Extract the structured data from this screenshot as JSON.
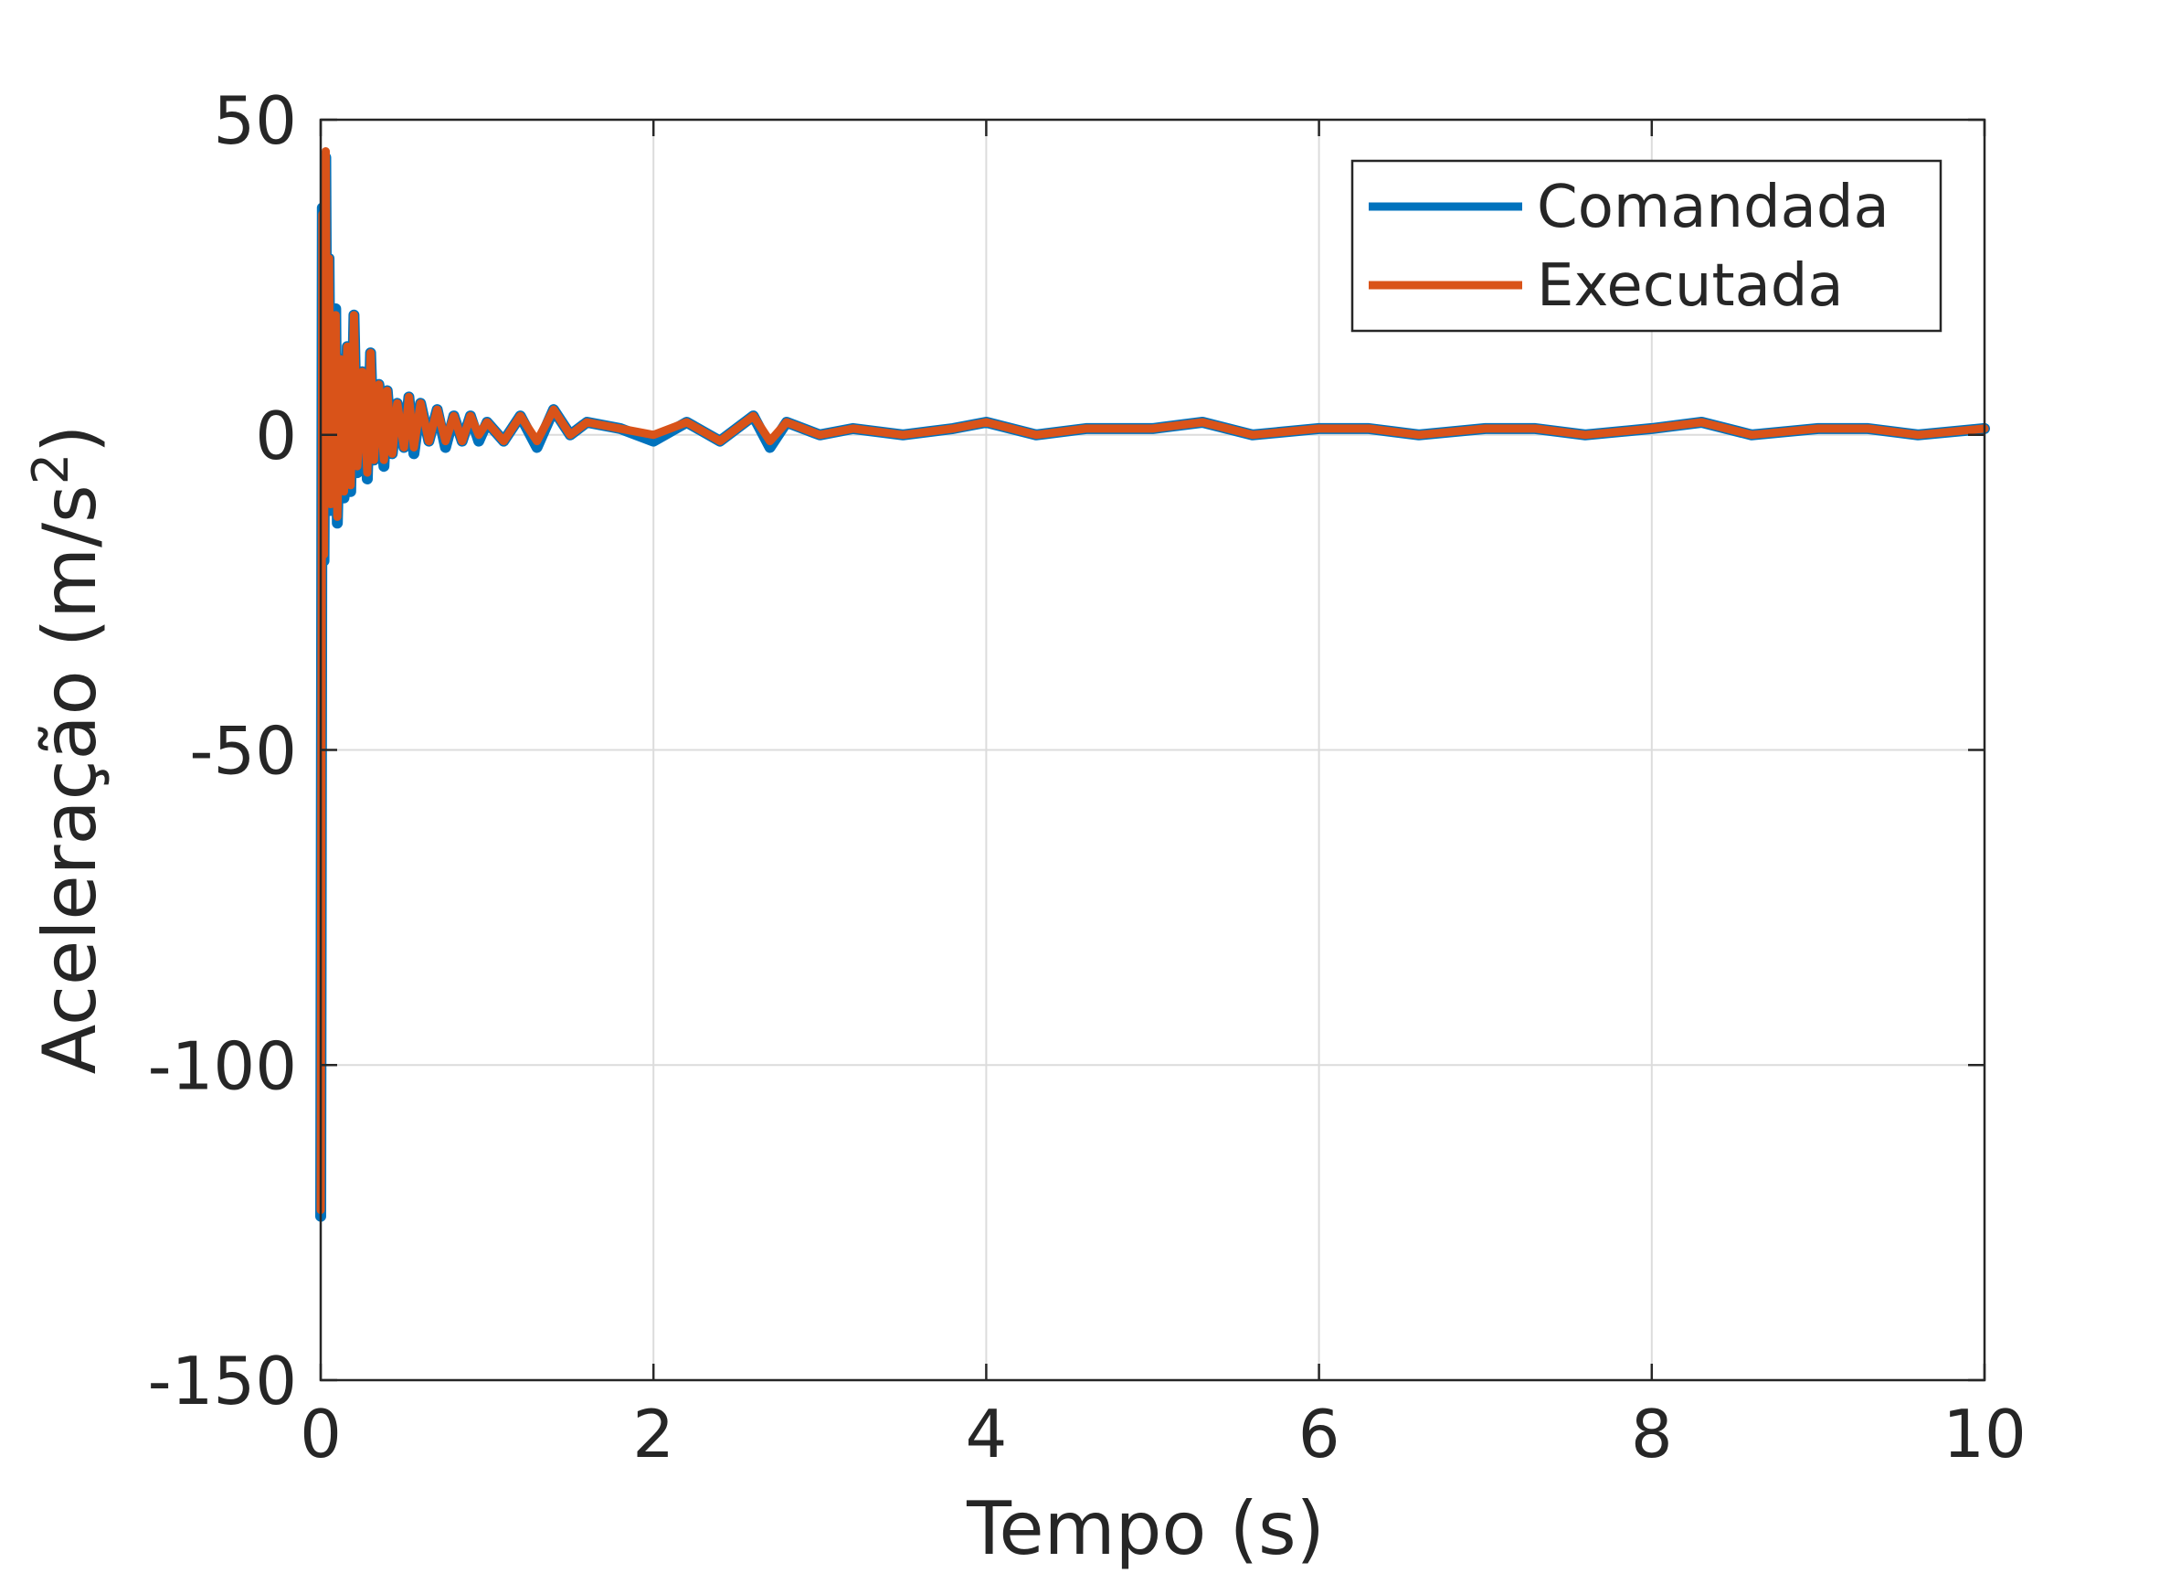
{
  "chart_data": {
    "type": "line",
    "xlabel": "Tempo (s)",
    "ylabel_main": "Aceleração (m/s",
    "ylabel_sup": "2",
    "ylabel_close": ")",
    "xlim": [
      0,
      10
    ],
    "ylim": [
      -150,
      50
    ],
    "xticks": [
      0,
      2,
      4,
      6,
      8,
      10
    ],
    "xtick_labels": [
      "0",
      "2",
      "4",
      "6",
      "8",
      "10"
    ],
    "yticks": [
      50,
      0,
      -50,
      -100,
      -150
    ],
    "ytick_labels": [
      "50",
      "0",
      "-50",
      "-100",
      "-150"
    ],
    "grid": true,
    "legend_position": "top-right",
    "series": [
      {
        "name": "Comandada",
        "color": "#0072BD",
        "x": [
          0,
          0.01,
          0.02,
          0.03,
          0.04,
          0.05,
          0.06,
          0.07,
          0.08,
          0.09,
          0.1,
          0.12,
          0.14,
          0.16,
          0.18,
          0.2,
          0.22,
          0.25,
          0.28,
          0.3,
          0.32,
          0.35,
          0.38,
          0.4,
          0.43,
          0.46,
          0.5,
          0.53,
          0.56,
          0.6,
          0.65,
          0.7,
          0.75,
          0.8,
          0.85,
          0.9,
          0.95,
          1.0,
          1.1,
          1.2,
          1.3,
          1.4,
          1.5,
          1.6,
          1.8,
          2.0,
          2.2,
          2.4,
          2.6,
          2.7,
          2.8,
          3.0,
          3.2,
          3.5,
          3.8,
          4.0,
          4.3,
          4.6,
          5.0,
          5.3,
          5.6,
          6.0,
          6.3,
          6.6,
          7.0,
          7.3,
          7.6,
          8.0,
          8.3,
          8.6,
          9.0,
          9.3,
          9.6,
          10.0
        ],
        "y": [
          -124,
          36,
          -20,
          44,
          -10,
          28,
          -12,
          18,
          -8,
          20,
          -14,
          12,
          -10,
          14,
          -9,
          19,
          -6,
          10,
          -7,
          13,
          -4,
          8,
          -5,
          7,
          -3,
          5,
          -2,
          6,
          -3,
          5,
          -1,
          4,
          -2,
          3,
          -1,
          3,
          -1,
          2,
          -1,
          3,
          -2,
          4,
          0,
          2,
          1,
          -1,
          2,
          -1,
          3,
          -2,
          2,
          0,
          1,
          0,
          1,
          2,
          0,
          1,
          1,
          2,
          0,
          1,
          1,
          0,
          1,
          1,
          0,
          1,
          2,
          0,
          1,
          1,
          0,
          1
        ]
      },
      {
        "name": "Executada",
        "color": "#D95319",
        "x": [
          0,
          0.01,
          0.02,
          0.03,
          0.04,
          0.05,
          0.06,
          0.07,
          0.08,
          0.09,
          0.1,
          0.12,
          0.14,
          0.16,
          0.18,
          0.2,
          0.22,
          0.25,
          0.28,
          0.3,
          0.32,
          0.35,
          0.38,
          0.4,
          0.43,
          0.46,
          0.5,
          0.53,
          0.56,
          0.6,
          0.65,
          0.7,
          0.75,
          0.8,
          0.85,
          0.9,
          0.95,
          1.0,
          1.1,
          1.2,
          1.3,
          1.4,
          1.5,
          1.6,
          1.8,
          2.0,
          2.2,
          2.4,
          2.6,
          2.7,
          2.8,
          3.0,
          3.2,
          3.5,
          3.8,
          4.0,
          4.3,
          4.6,
          5.0,
          5.3,
          5.6,
          6.0,
          6.3,
          6.6,
          7.0,
          7.3,
          7.6,
          8.0,
          8.3,
          8.6,
          9.0,
          9.3,
          9.6,
          10.0
        ],
        "y": [
          -123,
          35,
          -19,
          45,
          -9,
          28,
          -11,
          19,
          -7,
          19,
          -13,
          12,
          -9,
          14,
          -8,
          19,
          -5,
          10,
          -6,
          13,
          -4,
          8,
          -4,
          7,
          -3,
          5,
          -2,
          6,
          -2,
          5,
          -1,
          4,
          -1,
          3,
          -1,
          3,
          0,
          2,
          -1,
          3,
          -1,
          4,
          0,
          2,
          1,
          0,
          2,
          -1,
          3,
          -1,
          2,
          0,
          1,
          0,
          1,
          2,
          0,
          1,
          1,
          2,
          0,
          1,
          1,
          0,
          1,
          1,
          0,
          1,
          2,
          0,
          1,
          1,
          0,
          1
        ]
      }
    ]
  }
}
